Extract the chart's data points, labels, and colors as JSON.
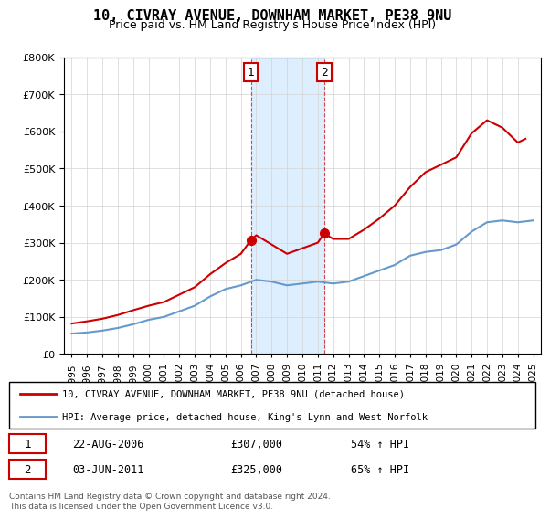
{
  "title": "10, CIVRAY AVENUE, DOWNHAM MARKET, PE38 9NU",
  "subtitle": "Price paid vs. HM Land Registry's House Price Index (HPI)",
  "legend_line1": "10, CIVRAY AVENUE, DOWNHAM MARKET, PE38 9NU (detached house)",
  "legend_line2": "HPI: Average price, detached house, King's Lynn and West Norfolk",
  "sale1_label": "1",
  "sale1_date": "22-AUG-2006",
  "sale1_price": "£307,000",
  "sale1_hpi": "54% ↑ HPI",
  "sale2_label": "2",
  "sale2_date": "03-JUN-2011",
  "sale2_price": "£325,000",
  "sale2_hpi": "65% ↑ HPI",
  "footer": "Contains HM Land Registry data © Crown copyright and database right 2024.\nThis data is licensed under the Open Government Licence v3.0.",
  "red_color": "#cc0000",
  "blue_color": "#6699cc",
  "shade_color": "#ddeeff",
  "marker_color": "#cc0000",
  "ylim": [
    0,
    800000
  ],
  "yticks": [
    0,
    100000,
    200000,
    300000,
    400000,
    500000,
    600000,
    700000,
    800000
  ],
  "sale1_year": 2006.65,
  "sale2_year": 2011.42,
  "sale1_price_val": 307000,
  "sale2_price_val": 325000,
  "hpi_years": [
    1995,
    1996,
    1997,
    1998,
    1999,
    2000,
    2001,
    2002,
    2003,
    2004,
    2005,
    2006,
    2007,
    2008,
    2009,
    2010,
    2011,
    2012,
    2013,
    2014,
    2015,
    2016,
    2017,
    2018,
    2019,
    2020,
    2021,
    2022,
    2023,
    2024,
    2025
  ],
  "hpi_values": [
    55000,
    58000,
    63000,
    70000,
    80000,
    92000,
    100000,
    115000,
    130000,
    155000,
    175000,
    185000,
    200000,
    195000,
    185000,
    190000,
    195000,
    190000,
    195000,
    210000,
    225000,
    240000,
    265000,
    275000,
    280000,
    295000,
    330000,
    355000,
    360000,
    355000,
    360000
  ],
  "red_years": [
    1995,
    1996,
    1997,
    1998,
    1999,
    2000,
    2001,
    2002,
    2003,
    2004,
    2005,
    2006,
    2006.65,
    2007,
    2008,
    2009,
    2010,
    2011,
    2011.42,
    2012,
    2013,
    2014,
    2015,
    2016,
    2017,
    2018,
    2019,
    2020,
    2021,
    2022,
    2023,
    2024,
    2024.5
  ],
  "red_values": [
    82000,
    88000,
    95000,
    105000,
    118000,
    130000,
    140000,
    160000,
    180000,
    215000,
    245000,
    270000,
    307000,
    320000,
    295000,
    270000,
    285000,
    300000,
    325000,
    310000,
    310000,
    335000,
    365000,
    400000,
    450000,
    490000,
    510000,
    530000,
    595000,
    630000,
    610000,
    570000,
    580000
  ]
}
